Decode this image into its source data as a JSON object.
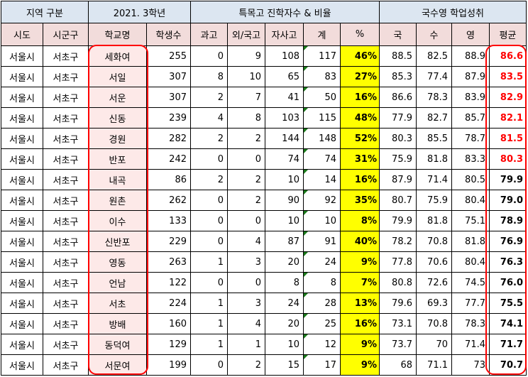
{
  "header": {
    "group_region": "지역 구분",
    "group_grade": "2021. 3학년",
    "group_special": "특목고 진학자수 & 비율",
    "group_score": "국수영 학업성취",
    "columns": [
      "시도",
      "시군구",
      "학교명",
      "학생수",
      "과고",
      "외/국고",
      "자사고",
      "계",
      "%",
      "국",
      "수",
      "영",
      "평균"
    ]
  },
  "rows": [
    [
      "서울시",
      "서초구",
      "세화여",
      "255",
      "0",
      "9",
      "108",
      "117",
      "46%",
      "88.5",
      "82.5",
      "88.9",
      "86.6"
    ],
    [
      "서울시",
      "서초구",
      "서일",
      "307",
      "8",
      "10",
      "65",
      "83",
      "27%",
      "85.3",
      "77.4",
      "87.9",
      "83.5"
    ],
    [
      "서울시",
      "서초구",
      "서운",
      "307",
      "2",
      "7",
      "41",
      "50",
      "16%",
      "86.6",
      "78.3",
      "83.9",
      "82.9"
    ],
    [
      "서울시",
      "서초구",
      "신동",
      "239",
      "4",
      "8",
      "103",
      "115",
      "48%",
      "77.9",
      "82.7",
      "85.7",
      "82.1"
    ],
    [
      "서울시",
      "서초구",
      "경원",
      "282",
      "2",
      "2",
      "144",
      "148",
      "52%",
      "80.3",
      "85.5",
      "78.7",
      "81.5"
    ],
    [
      "서울시",
      "서초구",
      "반포",
      "242",
      "0",
      "0",
      "74",
      "74",
      "31%",
      "75.9",
      "81.8",
      "83.3",
      "80.3"
    ],
    [
      "서울시",
      "서초구",
      "내곡",
      "86",
      "2",
      "2",
      "10",
      "14",
      "16%",
      "87.9",
      "71.4",
      "80.5",
      "79.9"
    ],
    [
      "서울시",
      "서초구",
      "원촌",
      "262",
      "0",
      "2",
      "90",
      "92",
      "35%",
      "80.7",
      "75.9",
      "80.4",
      "79.0"
    ],
    [
      "서울시",
      "서초구",
      "이수",
      "133",
      "0",
      "0",
      "10",
      "10",
      "8%",
      "79.9",
      "81.8",
      "75.1",
      "78.9"
    ],
    [
      "서울시",
      "서초구",
      "신반포",
      "229",
      "0",
      "4",
      "87",
      "91",
      "40%",
      "78.2",
      "70.8",
      "81.8",
      "76.9"
    ],
    [
      "서울시",
      "서초구",
      "영동",
      "263",
      "1",
      "3",
      "20",
      "24",
      "9%",
      "77.8",
      "70.6",
      "80.4",
      "76.3"
    ],
    [
      "서울시",
      "서초구",
      "언남",
      "122",
      "0",
      "0",
      "8",
      "8",
      "7%",
      "80.8",
      "72.6",
      "74.5",
      "76.0"
    ],
    [
      "서울시",
      "서초구",
      "서초",
      "224",
      "1",
      "3",
      "24",
      "28",
      "13%",
      "79.6",
      "69.3",
      "77.7",
      "75.5"
    ],
    [
      "서울시",
      "서초구",
      "방배",
      "160",
      "1",
      "4",
      "20",
      "25",
      "16%",
      "73.1",
      "70.8",
      "78.3",
      "74.1"
    ],
    [
      "서울시",
      "서초구",
      "동덕여",
      "129",
      "1",
      "1",
      "10",
      "12",
      "9%",
      "73.7",
      "70",
      "71.4",
      "71.7"
    ],
    [
      "서울시",
      "서초구",
      "서문여",
      "199",
      "0",
      "2",
      "15",
      "17",
      "9%",
      "68",
      "71.1",
      "73",
      "70.7"
    ]
  ],
  "highlight_top_avg_rows": 6,
  "colors": {
    "header_blue": "#dce6f1",
    "header_pink": "#f2dcdb",
    "school_fill": "#fde9e8",
    "percent_fill": "#ffff00",
    "highlight_red": "#ff0000"
  }
}
